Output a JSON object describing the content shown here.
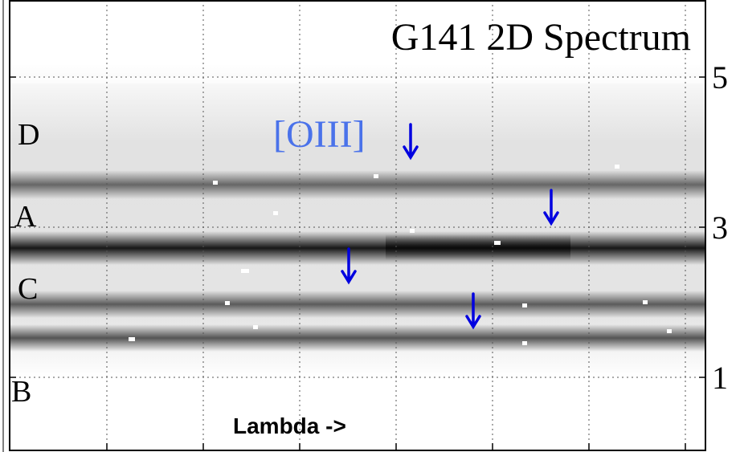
{
  "figure": {
    "title": "G141 2D Spectrum",
    "line_label": "[OIII]",
    "x_label": "Lambda ->",
    "trace_labels": [
      "D",
      "A",
      "C",
      "B"
    ],
    "yticks": [
      1,
      3,
      5
    ]
  }
}
